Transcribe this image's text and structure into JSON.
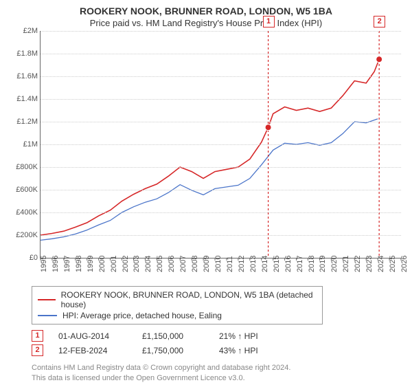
{
  "title": "ROOKERY NOOK, BRUNNER ROAD, LONDON, W5 1BA",
  "subtitle": "Price paid vs. HM Land Registry's House Price Index (HPI)",
  "chart": {
    "type": "line",
    "x_years": [
      1995,
      1996,
      1997,
      1998,
      1999,
      2000,
      2001,
      2002,
      2003,
      2004,
      2005,
      2006,
      2007,
      2008,
      2009,
      2010,
      2011,
      2012,
      2013,
      2014,
      2015,
      2016,
      2017,
      2018,
      2019,
      2020,
      2021,
      2022,
      2023,
      2024,
      2025,
      2026
    ],
    "ylim": [
      0,
      2000000
    ],
    "ytick_labels": [
      "£0",
      "£200K",
      "£400K",
      "£600K",
      "£800K",
      "£1M",
      "£1.2M",
      "£1.4M",
      "£1.6M",
      "£1.8M",
      "£2M"
    ],
    "ytick_values": [
      0,
      200000,
      400000,
      600000,
      800000,
      1000000,
      1200000,
      1400000,
      1600000,
      1800000,
      2000000
    ],
    "grid_color": "#cccccc",
    "axis_color": "#666666",
    "background": "#ffffff",
    "series": [
      {
        "name": "ROOKERY NOOK, BRUNNER ROAD, LONDON, W5 1BA (detached house)",
        "color": "#d62728",
        "line_width": 1.6,
        "data": [
          [
            1995,
            200000
          ],
          [
            1996,
            215000
          ],
          [
            1997,
            235000
          ],
          [
            1998,
            270000
          ],
          [
            1999,
            310000
          ],
          [
            2000,
            370000
          ],
          [
            2001,
            420000
          ],
          [
            2002,
            500000
          ],
          [
            2003,
            560000
          ],
          [
            2004,
            610000
          ],
          [
            2005,
            650000
          ],
          [
            2006,
            720000
          ],
          [
            2007,
            800000
          ],
          [
            2008,
            760000
          ],
          [
            2009,
            700000
          ],
          [
            2010,
            760000
          ],
          [
            2011,
            780000
          ],
          [
            2012,
            800000
          ],
          [
            2013,
            870000
          ],
          [
            2014,
            1020000
          ],
          [
            2014.58,
            1150000
          ],
          [
            2015,
            1270000
          ],
          [
            2016,
            1330000
          ],
          [
            2017,
            1300000
          ],
          [
            2018,
            1320000
          ],
          [
            2019,
            1290000
          ],
          [
            2020,
            1320000
          ],
          [
            2021,
            1430000
          ],
          [
            2022,
            1560000
          ],
          [
            2023,
            1540000
          ],
          [
            2023.7,
            1640000
          ],
          [
            2024.12,
            1750000
          ]
        ]
      },
      {
        "name": "HPI: Average price, detached house, Ealing",
        "color": "#4a74c9",
        "line_width": 1.3,
        "data": [
          [
            1995,
            155000
          ],
          [
            1996,
            168000
          ],
          [
            1997,
            185000
          ],
          [
            1998,
            210000
          ],
          [
            1999,
            245000
          ],
          [
            2000,
            290000
          ],
          [
            2001,
            330000
          ],
          [
            2002,
            400000
          ],
          [
            2003,
            450000
          ],
          [
            2004,
            490000
          ],
          [
            2005,
            520000
          ],
          [
            2006,
            575000
          ],
          [
            2007,
            645000
          ],
          [
            2008,
            595000
          ],
          [
            2009,
            555000
          ],
          [
            2010,
            610000
          ],
          [
            2011,
            625000
          ],
          [
            2012,
            640000
          ],
          [
            2013,
            700000
          ],
          [
            2014,
            820000
          ],
          [
            2015,
            950000
          ],
          [
            2016,
            1010000
          ],
          [
            2017,
            1000000
          ],
          [
            2018,
            1015000
          ],
          [
            2019,
            992000
          ],
          [
            2020,
            1015000
          ],
          [
            2021,
            1095000
          ],
          [
            2022,
            1200000
          ],
          [
            2023,
            1190000
          ],
          [
            2024,
            1225000
          ]
        ]
      }
    ],
    "transactions": [
      {
        "n": "1",
        "year": 2014.58,
        "value": 1150000,
        "color": "#d62728"
      },
      {
        "n": "2",
        "year": 2024.12,
        "value": 1750000,
        "color": "#d62728"
      }
    ]
  },
  "legend": {
    "row1_color": "#d62728",
    "row1_label": "ROOKERY NOOK, BRUNNER ROAD, LONDON, W5 1BA (detached house)",
    "row2_color": "#4a74c9",
    "row2_label": "HPI: Average price, detached house, Ealing"
  },
  "txn_rows": [
    {
      "n": "1",
      "color": "#d62728",
      "date": "01-AUG-2014",
      "price": "£1,150,000",
      "diff": "21% ↑ HPI"
    },
    {
      "n": "2",
      "color": "#d62728",
      "date": "12-FEB-2024",
      "price": "£1,750,000",
      "diff": "43% ↑ HPI"
    }
  ],
  "footer": {
    "line1": "Contains HM Land Registry data © Crown copyright and database right 2024.",
    "line2": "This data is licensed under the Open Government Licence v3.0."
  }
}
